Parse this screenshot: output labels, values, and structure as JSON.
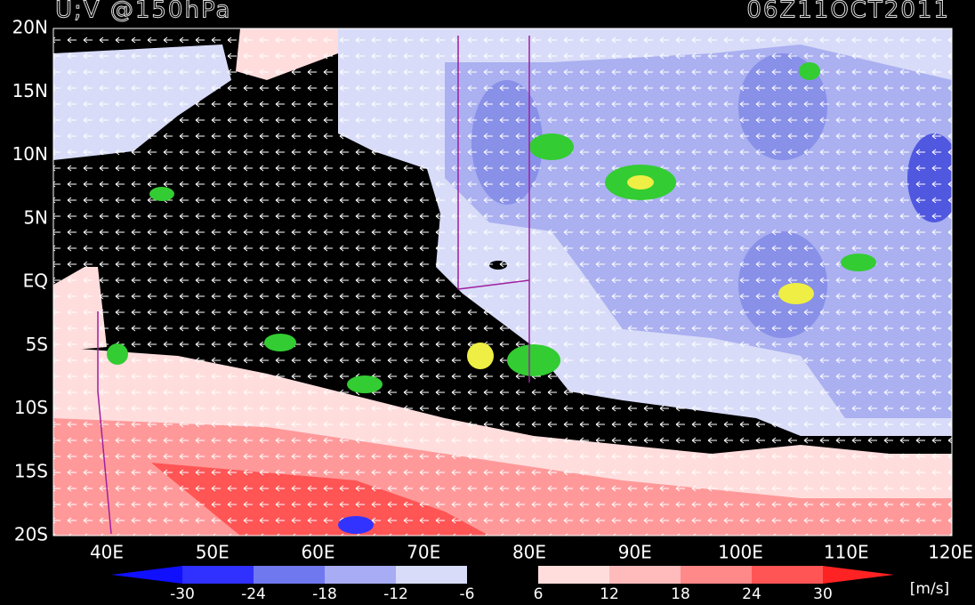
{
  "header": {
    "title": "U;V @150hPa",
    "date": "06Z11OCT2011"
  },
  "axes": {
    "lat_labels": [
      "20N",
      "15N",
      "10N",
      "5N",
      "EQ",
      "5S",
      "10S",
      "15S",
      "20S"
    ],
    "lon_labels": [
      "40E",
      "50E",
      "60E",
      "70E",
      "80E",
      "90E",
      "100E",
      "110E",
      "120E"
    ]
  },
  "colorbar": {
    "labels": [
      "-30",
      "-24",
      "-18",
      "-12",
      "-6",
      "6",
      "12",
      "18",
      "24",
      "30"
    ],
    "units": "[m/s]"
  }
}
